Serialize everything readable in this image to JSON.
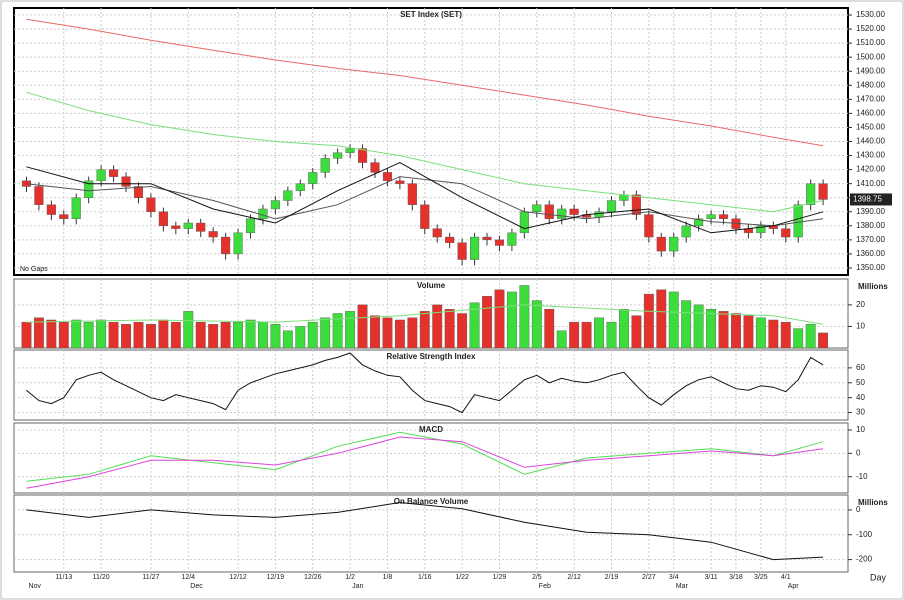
{
  "chart_data": [
    {
      "type": "candlestick",
      "title": "SET Index (SET)",
      "annotation": "No Gaps",
      "last_label": "1398.75",
      "up_color": "#3ddc3d",
      "down_color": "#e5312c",
      "xlim": [
        -1,
        66
      ],
      "open": [
        1412,
        1408,
        1395,
        1388,
        1385,
        1400,
        1412,
        1420,
        1415,
        1408,
        1400,
        1390,
        1380,
        1378,
        1382,
        1376,
        1372,
        1360,
        1375,
        1385,
        1392,
        1398,
        1405,
        1410,
        1418,
        1428,
        1432,
        1435,
        1425,
        1418,
        1412,
        1410,
        1395,
        1378,
        1372,
        1368,
        1356,
        1372,
        1370,
        1366,
        1375,
        1390,
        1395,
        1385,
        1392,
        1388,
        1386,
        1390,
        1398,
        1402,
        1388,
        1372,
        1362,
        1372,
        1380,
        1385,
        1388,
        1385,
        1378,
        1375,
        1380,
        1378,
        1372,
        1395,
        1410
      ],
      "high": [
        1415,
        1411,
        1398,
        1391,
        1403,
        1415,
        1423,
        1423,
        1418,
        1411,
        1403,
        1393,
        1383,
        1385,
        1385,
        1379,
        1375,
        1378,
        1388,
        1395,
        1401,
        1408,
        1413,
        1421,
        1431,
        1435,
        1438,
        1438,
        1428,
        1421,
        1415,
        1413,
        1398,
        1381,
        1375,
        1371,
        1375,
        1375,
        1373,
        1378,
        1393,
        1398,
        1398,
        1395,
        1395,
        1391,
        1393,
        1401,
        1405,
        1405,
        1391,
        1375,
        1375,
        1383,
        1388,
        1391,
        1391,
        1388,
        1381,
        1383,
        1383,
        1381,
        1398,
        1413,
        1413
      ],
      "low": [
        1404,
        1391,
        1384,
        1381,
        1381,
        1396,
        1408,
        1411,
        1404,
        1396,
        1386,
        1376,
        1374,
        1374,
        1372,
        1368,
        1356,
        1356,
        1371,
        1381,
        1388,
        1394,
        1401,
        1406,
        1414,
        1424,
        1428,
        1421,
        1414,
        1408,
        1406,
        1391,
        1374,
        1368,
        1364,
        1352,
        1352,
        1366,
        1362,
        1362,
        1371,
        1386,
        1381,
        1381,
        1384,
        1382,
        1382,
        1386,
        1394,
        1384,
        1368,
        1358,
        1358,
        1368,
        1376,
        1381,
        1381,
        1374,
        1371,
        1371,
        1374,
        1368,
        1368,
        1391,
        1394.75
      ],
      "close": [
        1408,
        1395,
        1388,
        1385,
        1400,
        1412,
        1420,
        1415,
        1408,
        1400,
        1390,
        1380,
        1378,
        1382,
        1376,
        1372,
        1360,
        1375,
        1385,
        1392,
        1398,
        1405,
        1410,
        1418,
        1428,
        1432,
        1435,
        1425,
        1418,
        1412,
        1410,
        1395,
        1378,
        1372,
        1368,
        1356,
        1372,
        1370,
        1366,
        1375,
        1390,
        1395,
        1385,
        1392,
        1388,
        1386,
        1390,
        1398,
        1402,
        1388,
        1372,
        1362,
        1372,
        1380,
        1385,
        1388,
        1385,
        1378,
        1375,
        1380,
        1378,
        1372,
        1395,
        1410,
        1398.75
      ],
      "series": [
        {
          "color": "#e86a6a",
          "x": [
            0,
            5,
            10,
            15,
            20,
            25,
            30,
            35,
            40,
            45,
            50,
            55,
            60,
            64
          ],
          "values": [
            1527,
            1520,
            1512,
            1505,
            1498,
            1492,
            1487,
            1480,
            1473,
            1466,
            1458,
            1451,
            1443,
            1437
          ]
        },
        {
          "color": "#7be07b",
          "x": [
            0,
            5,
            10,
            15,
            20,
            25,
            30,
            35,
            40,
            45,
            50,
            55,
            60,
            64
          ],
          "values": [
            1475,
            1462,
            1452,
            1445,
            1440,
            1437,
            1430,
            1420,
            1410,
            1405,
            1400,
            1395,
            1390,
            1398
          ]
        },
        {
          "color": "#555555",
          "x": [
            0,
            5,
            10,
            15,
            20,
            25,
            30,
            35,
            40,
            45,
            50,
            55,
            60,
            64
          ],
          "values": [
            1410,
            1405,
            1408,
            1398,
            1385,
            1395,
            1415,
            1410,
            1390,
            1385,
            1390,
            1383,
            1380,
            1385
          ]
        },
        {
          "color": "#111111",
          "x": [
            0,
            5,
            10,
            15,
            20,
            25,
            30,
            35,
            40,
            45,
            50,
            55,
            60,
            64
          ],
          "values": [
            1422,
            1410,
            1410,
            1392,
            1382,
            1405,
            1425,
            1400,
            1378,
            1388,
            1392,
            1375,
            1380,
            1390
          ]
        }
      ],
      "ylim": [
        1345,
        1535
      ],
      "yticks": [
        {
          "value": 1350,
          "label": "1350.00"
        },
        {
          "value": 1360,
          "label": "1360.00"
        },
        {
          "value": 1370,
          "label": "1370.00"
        },
        {
          "value": 1380,
          "label": "1380.00"
        },
        {
          "value": 1390,
          "label": "1390.00"
        },
        {
          "value": 1400,
          "label": "1400.00"
        },
        {
          "value": 1410,
          "label": "1410.00"
        },
        {
          "value": 1420,
          "label": "1420.00"
        },
        {
          "value": 1430,
          "label": "1430.00"
        },
        {
          "value": 1440,
          "label": "1440.00"
        },
        {
          "value": 1450,
          "label": "1450.00"
        },
        {
          "value": 1460,
          "label": "1460.00"
        },
        {
          "value": 1470,
          "label": "1470.00"
        },
        {
          "value": 1480,
          "label": "1480.00"
        },
        {
          "value": 1490,
          "label": "1490.00"
        },
        {
          "value": 1500,
          "label": "1500.00"
        },
        {
          "value": 1510,
          "label": "1510.00"
        },
        {
          "value": 1520,
          "label": "1520.00"
        },
        {
          "value": 1530,
          "label": "1530.00"
        }
      ]
    },
    {
      "type": "bar",
      "title": "Volume",
      "unit": "Millions",
      "values": [
        12,
        14,
        13,
        12,
        13,
        12,
        13,
        12,
        11,
        12,
        11,
        13,
        12,
        17,
        12,
        11,
        12,
        12,
        13,
        12,
        11,
        8,
        10,
        12,
        14,
        16,
        17,
        20,
        15,
        14,
        13,
        14,
        17,
        20,
        18,
        16,
        21,
        24,
        27,
        26,
        29,
        22,
        18,
        8,
        12,
        12,
        14,
        12,
        18,
        15,
        25,
        27,
        26,
        22,
        20,
        18,
        17,
        16,
        15,
        14,
        13,
        12,
        9,
        11,
        7
      ],
      "series": [
        {
          "color": "#7be07b",
          "x": [
            0,
            10,
            20,
            30,
            40,
            50,
            60,
            64
          ],
          "values": [
            12,
            13,
            12,
            15,
            20,
            17,
            15,
            11
          ]
        }
      ],
      "ylim": [
        0,
        32
      ],
      "yticks": [
        10,
        20
      ]
    },
    {
      "type": "line",
      "title": "Relative Strength Index",
      "series": [
        {
          "color": "#111111",
          "values": [
            45,
            38,
            36,
            40,
            52,
            55,
            57,
            52,
            48,
            44,
            40,
            38,
            42,
            40,
            38,
            36,
            32,
            45,
            50,
            53,
            56,
            58,
            60,
            62,
            65,
            67,
            70,
            62,
            58,
            55,
            54,
            45,
            38,
            36,
            34,
            30,
            42,
            40,
            38,
            45,
            52,
            55,
            50,
            53,
            51,
            50,
            52,
            55,
            57,
            48,
            40,
            35,
            42,
            48,
            52,
            54,
            50,
            46,
            45,
            48,
            47,
            44,
            52,
            67,
            62
          ]
        }
      ],
      "ylim": [
        25,
        72
      ],
      "yticks": [
        30,
        40,
        50,
        60
      ]
    },
    {
      "type": "line",
      "title": "MACD",
      "series": [
        {
          "color": "#55dd55",
          "x": [
            0,
            5,
            10,
            15,
            20,
            25,
            30,
            35,
            40,
            45,
            50,
            55,
            60,
            64
          ],
          "values": [
            -12,
            -9,
            -1,
            -4,
            -7,
            3,
            9,
            4,
            -9,
            -2,
            0,
            2,
            -1,
            5
          ]
        },
        {
          "color": "#dd44dd",
          "x": [
            0,
            5,
            10,
            15,
            20,
            25,
            30,
            35,
            40,
            45,
            50,
            55,
            60,
            64
          ],
          "values": [
            -15,
            -10,
            -3,
            -3,
            -5,
            0,
            7,
            5,
            -6,
            -3,
            -1,
            1,
            -1,
            2
          ]
        }
      ],
      "ylim": [
        -17,
        13
      ],
      "yticks": [
        -10,
        0,
        10
      ]
    },
    {
      "type": "line",
      "title": "On Balance Volume",
      "unit": "Millions",
      "xlabel": "Day",
      "series": [
        {
          "color": "#111111",
          "x": [
            0,
            5,
            10,
            15,
            20,
            25,
            30,
            35,
            40,
            45,
            50,
            55,
            60,
            64
          ],
          "values": [
            0,
            -30,
            0,
            -20,
            -30,
            -10,
            30,
            5,
            -50,
            -90,
            -100,
            -130,
            -200,
            -190
          ]
        }
      ],
      "ylim": [
        -250,
        60
      ],
      "yticks": [
        -200,
        -100,
        0
      ],
      "xticks": [
        {
          "value": 3,
          "label": "11/13"
        },
        {
          "value": 6,
          "label": "11/20"
        },
        {
          "value": 10,
          "label": "11/27"
        },
        {
          "value": 13,
          "label": "12/4"
        },
        {
          "value": 17,
          "label": "12/12"
        },
        {
          "value": 20,
          "label": "12/19"
        },
        {
          "value": 23,
          "label": "12/26"
        },
        {
          "value": 26,
          "label": "1/2"
        },
        {
          "value": 29,
          "label": "1/8"
        },
        {
          "value": 32,
          "label": "1/16"
        },
        {
          "value": 35,
          "label": "1/22"
        },
        {
          "value": 38,
          "label": "1/29"
        },
        {
          "value": 41,
          "label": "2/5"
        },
        {
          "value": 44,
          "label": "2/12"
        },
        {
          "value": 47,
          "label": "2/19"
        },
        {
          "value": 50,
          "label": "2/27"
        },
        {
          "value": 52,
          "label": "3/4"
        },
        {
          "value": 55,
          "label": "3/11"
        },
        {
          "value": 57,
          "label": "3/18"
        },
        {
          "value": 59,
          "label": "3/25"
        },
        {
          "value": 61,
          "label": "4/1"
        }
      ],
      "month_ticks": [
        {
          "value": 0,
          "label": "Nov"
        },
        {
          "value": 13,
          "label": "Dec"
        },
        {
          "value": 26,
          "label": "Jan"
        },
        {
          "value": 41,
          "label": "Feb"
        },
        {
          "value": 52,
          "label": "Mar"
        },
        {
          "value": 61,
          "label": "Apr"
        }
      ]
    }
  ]
}
